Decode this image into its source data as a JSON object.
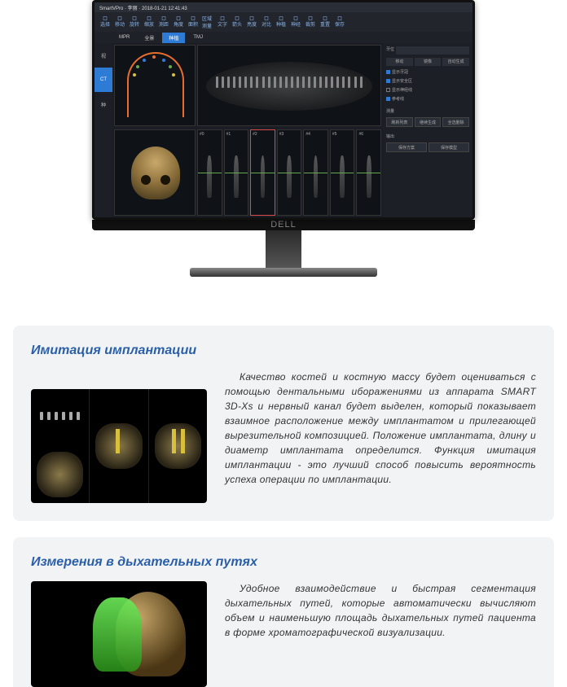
{
  "app": {
    "title": "SmartVPro · 李丽 · 2018-01-21 12:41:43",
    "toolbar": [
      {
        "name": "sel",
        "label": "选择"
      },
      {
        "name": "move",
        "label": "移动"
      },
      {
        "name": "rot",
        "label": "旋转"
      },
      {
        "name": "zoom",
        "label": "缩放"
      },
      {
        "name": "dist",
        "label": "测距"
      },
      {
        "name": "ang",
        "label": "角度"
      },
      {
        "name": "area",
        "label": "面积"
      },
      {
        "name": "reg",
        "label": "区域测量"
      },
      {
        "name": "text",
        "label": "文字"
      },
      {
        "name": "arrow",
        "label": "箭头"
      },
      {
        "name": "bright",
        "label": "亮度"
      },
      {
        "name": "contr",
        "label": "对比"
      },
      {
        "name": "imp",
        "label": "种植"
      },
      {
        "name": "nerve",
        "label": "神经"
      },
      {
        "name": "crop",
        "label": "裁剪"
      },
      {
        "name": "reset",
        "label": "重置"
      },
      {
        "name": "save",
        "label": "保存"
      }
    ],
    "subtabs": [
      "MPR",
      "全景",
      "种植",
      "TMJ"
    ],
    "subtab_active": 2,
    "leftnav": [
      {
        "name": "view",
        "label": "视"
      },
      {
        "name": "ct",
        "label": "CT"
      },
      {
        "name": "im",
        "label": "种"
      }
    ],
    "leftnav_active": 1,
    "slice_labels": [
      "#0",
      "#1",
      "#2",
      "#3",
      "#4",
      "#5",
      "#6"
    ],
    "slice_highlight": 2,
    "rightpanel": {
      "search_label": "牙位",
      "search_placeholder": "输入位置",
      "tabs": [
        "移动",
        "镜像",
        "自动生成"
      ],
      "checks": [
        {
          "label": "显示牙冠",
          "on": true
        },
        {
          "label": "显示安全区",
          "on": true
        },
        {
          "label": "显示神经线",
          "on": false
        },
        {
          "label": "参考线",
          "on": true
        }
      ],
      "section2": "测量",
      "btns": [
        "刷新列表",
        "继续生成",
        "全选删除"
      ],
      "section3": "输出",
      "btns2": [
        "保存方案",
        "保存模型"
      ]
    },
    "monitor_brand": "DELL"
  },
  "feature1": {
    "title": "Имитация имплантации",
    "body": "Качество костей и костную массу будет оцениваться с помощью дентальными иборажениями из аппарата SMART 3D-Xs и нервный канал будет выделен, который показывает взаимное расположение между имплантатом и прилегающей вырезительной композицией. Положение имплантата, длину и диаметр имплантата определится. Функция имитация имплантации - это лучший способ повысить вероятность успеха операции по имплантации."
  },
  "feature2": {
    "title": "Измерения в дыхательных путях",
    "body": "Удобное взаимодействие и быстрая сегментация дыхательных путей, которые автоматически вычисляют объем и наименьшую площадь дыхательных путей пациента в форме хроматографической визуализации."
  },
  "colors": {
    "accent": "#2e7bd6",
    "heading": "#2a5fa8",
    "arch": "#e86e2e",
    "slice_hi": "#d94b4b"
  }
}
